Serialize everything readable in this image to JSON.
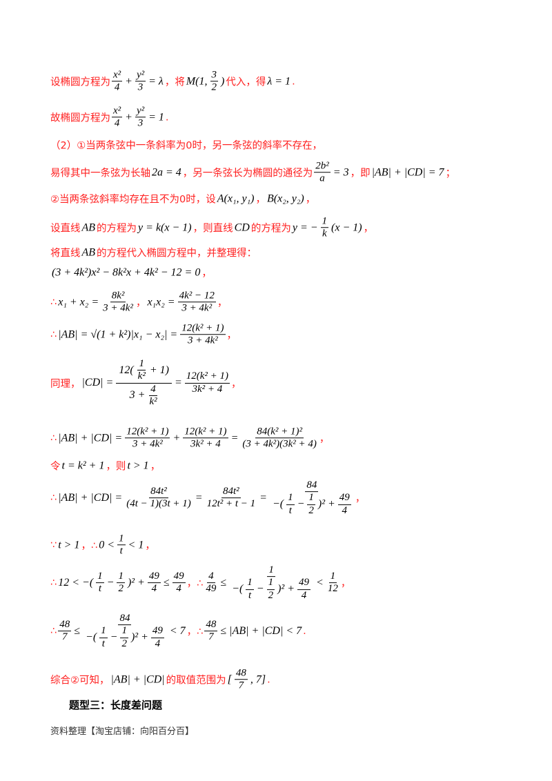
{
  "colors": {
    "text": "#ff2020",
    "math": "#000000",
    "footer": "#333333"
  },
  "lines": [
    {
      "segs": [
        {
          "t": "设椭圆方程为"
        },
        {
          "f": [
            "x²",
            "4"
          ]
        },
        {
          "m": "+"
        },
        {
          "f": [
            "y²",
            "3"
          ]
        },
        {
          "m": "= λ"
        },
        {
          "t": "，将"
        },
        {
          "m": "M(1,"
        },
        {
          "f": [
            "3",
            "2"
          ]
        },
        {
          "m": ")"
        },
        {
          "t": "代入，得"
        },
        {
          "m": "λ = 1"
        },
        {
          "t": "."
        }
      ]
    },
    {
      "segs": [
        {
          "t": "故椭圆方程为"
        },
        {
          "f": [
            "x²",
            "4"
          ]
        },
        {
          "m": "+"
        },
        {
          "f": [
            "y²",
            "3"
          ]
        },
        {
          "m": "= 1"
        },
        {
          "t": "."
        }
      ]
    },
    {
      "segs": [
        {
          "t": "（2）①当两条弦中一条斜率为0时，另一条弦的斜率不存在，"
        }
      ]
    },
    {
      "segs": [
        {
          "t": "易得其中一条弦为长轴"
        },
        {
          "m": "2a = 4"
        },
        {
          "t": "，另一条弦长为椭圆的通径为"
        },
        {
          "f": [
            "2b²",
            "a"
          ]
        },
        {
          "m": "= 3"
        },
        {
          "t": "，即"
        },
        {
          "m": "|AB| + |CD| = 7"
        },
        {
          "t": "；"
        }
      ]
    },
    {
      "segs": [
        {
          "t": "②当两条弦斜率均存在且不为0时，设"
        },
        {
          "m": "A(x₁, y₁)"
        },
        {
          "t": "，"
        },
        {
          "m": "B(x₂, y₂)"
        },
        {
          "t": "，"
        }
      ]
    },
    {
      "segs": [
        {
          "t": "设直线"
        },
        {
          "m": "AB"
        },
        {
          "t": "的方程为"
        },
        {
          "m": "y = k(x − 1)"
        },
        {
          "t": "，则直线"
        },
        {
          "m": "CD"
        },
        {
          "t": "的方程为"
        },
        {
          "m": "y = −"
        },
        {
          "f": [
            "1",
            "k"
          ]
        },
        {
          "m": "(x − 1)"
        },
        {
          "t": "，"
        }
      ]
    },
    {
      "segs": [
        {
          "t": "将直线"
        },
        {
          "m": "AB"
        },
        {
          "t": "的方程代入椭圆方程中，并整理得："
        }
      ]
    },
    {
      "segs": [
        {
          "m": "(3 + 4k²)x² − 8k²x + 4k² − 12 = 0"
        },
        {
          "t": "，"
        }
      ]
    },
    {
      "segs": [
        {
          "t": "∴"
        },
        {
          "m": "x₁ + x₂ ="
        },
        {
          "f": [
            "8k²",
            "3 + 4k²"
          ]
        },
        {
          "t": "，"
        },
        {
          "m": "x₁x₂ ="
        },
        {
          "f": [
            "4k² − 12",
            "3 + 4k²"
          ]
        },
        {
          "t": "，"
        }
      ]
    },
    {
      "segs": [
        {
          "t": "∴"
        },
        {
          "m": "|AB| = √(1 + k²)|x₁ − x₂| ="
        },
        {
          "f": [
            "12(k² + 1)",
            "3 + 4k²"
          ]
        },
        {
          "t": "，"
        }
      ]
    },
    {
      "segs": [
        {
          "t": "同理，"
        },
        {
          "m": "|CD| ="
        },
        {
          "f": [
            [
              {
                "m": "12("
              },
              {
                "f": [
                  "1",
                  "k²"
                ]
              },
              {
                "m": "+ 1)"
              }
            ],
            [
              {
                "m": "3 +"
              },
              {
                "f": [
                  "4",
                  "k²"
                ]
              }
            ]
          ]
        },
        {
          "m": "="
        },
        {
          "f": [
            "12(k² + 1)",
            "3k² + 4"
          ]
        },
        {
          "t": "，"
        }
      ]
    },
    {
      "segs": [
        {
          "t": "∴"
        },
        {
          "m": "|AB| + |CD| ="
        },
        {
          "f": [
            "12(k² + 1)",
            "3 + 4k²"
          ]
        },
        {
          "m": "+"
        },
        {
          "f": [
            "12(k² + 1)",
            "3k² + 4"
          ]
        },
        {
          "m": "="
        },
        {
          "f": [
            "84(k² + 1)²",
            "(3 + 4k²)(3k² + 4)"
          ]
        },
        {
          "t": "，"
        }
      ]
    },
    {
      "segs": [
        {
          "t": "令"
        },
        {
          "m": "t = k² + 1"
        },
        {
          "t": "，则"
        },
        {
          "m": "t > 1"
        },
        {
          "t": "，"
        }
      ]
    },
    {
      "segs": [
        {
          "t": "∴"
        },
        {
          "m": "|AB| + |CD| ="
        },
        {
          "f": [
            "84t²",
            "(4t − 1)(3t + 1)"
          ]
        },
        {
          "m": "="
        },
        {
          "f": [
            "84t²",
            "12t² + t − 1"
          ]
        },
        {
          "m": "="
        },
        {
          "f": [
            "84",
            [
              {
                "m": "−("
              },
              {
                "f": [
                  "1",
                  "t"
                ]
              },
              {
                "m": "−"
              },
              {
                "f": [
                  "1",
                  "2"
                ]
              },
              {
                "m": ")² +"
              },
              {
                "f": [
                  "49",
                  "4"
                ]
              }
            ]
          ]
        },
        {
          "t": "，"
        }
      ]
    },
    {
      "segs": [
        {
          "t": "∵"
        },
        {
          "m": "t > 1"
        },
        {
          "t": "，∴"
        },
        {
          "m": "0 <"
        },
        {
          "f": [
            "1",
            "t"
          ]
        },
        {
          "m": "< 1"
        },
        {
          "t": "，"
        }
      ]
    },
    {
      "segs": [
        {
          "t": "∴"
        },
        {
          "m": "12 < −("
        },
        {
          "f": [
            "1",
            "t"
          ]
        },
        {
          "m": "−"
        },
        {
          "f": [
            "1",
            "2"
          ]
        },
        {
          "m": ")² +"
        },
        {
          "f": [
            "49",
            "4"
          ]
        },
        {
          "m": "≤"
        },
        {
          "f": [
            "49",
            "4"
          ]
        },
        {
          "t": "，∴"
        },
        {
          "f": [
            "4",
            "49"
          ]
        },
        {
          "m": "≤"
        },
        {
          "f": [
            "1",
            [
              {
                "m": "−("
              },
              {
                "f": [
                  "1",
                  "t"
                ]
              },
              {
                "m": "−"
              },
              {
                "f": [
                  "1",
                  "2"
                ]
              },
              {
                "m": ")² +"
              },
              {
                "f": [
                  "49",
                  "4"
                ]
              }
            ]
          ]
        },
        {
          "m": "<"
        },
        {
          "f": [
            "1",
            "12"
          ]
        },
        {
          "t": "，"
        }
      ]
    },
    {
      "segs": [
        {
          "t": "∴"
        },
        {
          "f": [
            "48",
            "7"
          ]
        },
        {
          "m": "≤"
        },
        {
          "f": [
            "84",
            [
              {
                "m": "−("
              },
              {
                "f": [
                  "1",
                  "t"
                ]
              },
              {
                "m": "−"
              },
              {
                "f": [
                  "1",
                  "2"
                ]
              },
              {
                "m": ")² +"
              },
              {
                "f": [
                  "49",
                  "4"
                ]
              }
            ]
          ]
        },
        {
          "m": "< 7"
        },
        {
          "t": "，∴"
        },
        {
          "f": [
            "48",
            "7"
          ]
        },
        {
          "m": "≤ |AB| + |CD| < 7"
        },
        {
          "t": "."
        }
      ]
    },
    {
      "segs": [
        {
          "t": "综合②可知，"
        },
        {
          "m": "|AB| + |CD|"
        },
        {
          "t": "的取值范围为"
        },
        {
          "m": "["
        },
        {
          "f": [
            "48",
            "7"
          ]
        },
        {
          "m": ", 7]"
        },
        {
          "t": "."
        }
      ]
    }
  ],
  "heading": "题型三：长度差问题",
  "footer": "资料整理【淘宝店铺：向阳百分百】"
}
